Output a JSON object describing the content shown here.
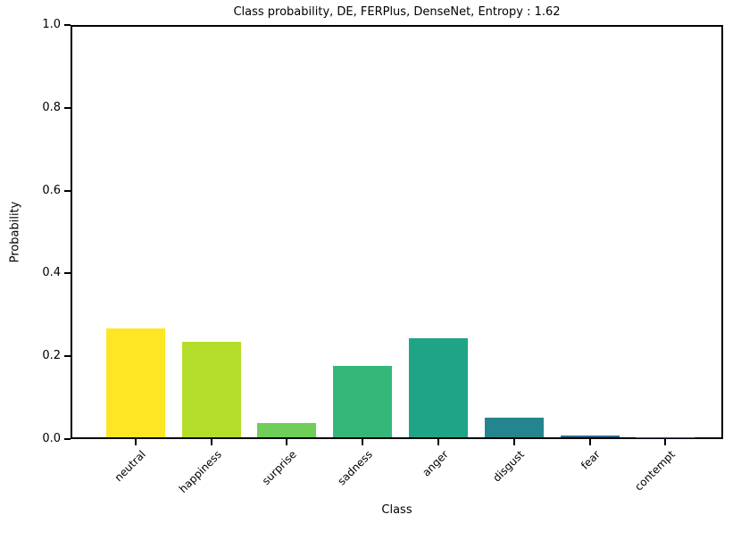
{
  "chart_data": {
    "type": "bar",
    "title": "Class probability, DE, FERPlus, DenseNet, Entropy : 1.62",
    "xlabel": "Class",
    "ylabel": "Probability",
    "categories": [
      "neutral",
      "happiness",
      "surprise",
      "sadness",
      "anger",
      "disgust",
      "fear",
      "contempt"
    ],
    "values": [
      0.265,
      0.232,
      0.034,
      0.174,
      0.241,
      0.047,
      0.004,
      0.001
    ],
    "colors": [
      "#fde725",
      "#b5de2b",
      "#6ece58",
      "#35b779",
      "#20a486",
      "#25858e",
      "#31688e",
      "#3e4989"
    ],
    "ylim": [
      0,
      1
    ],
    "ytick_labels": [
      "0.0",
      "0.2",
      "0.4",
      "0.6",
      "0.8",
      "1.0"
    ],
    "ytick_values": [
      0.0,
      0.2,
      0.4,
      0.6,
      0.8,
      1.0
    ],
    "grid": false,
    "legend": "none"
  }
}
